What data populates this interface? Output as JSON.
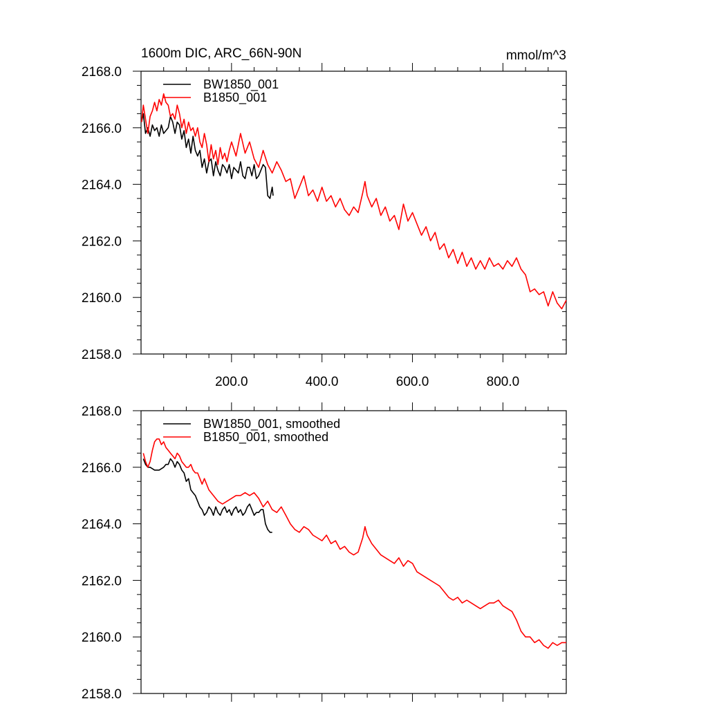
{
  "title_left": "1600m DIC, ARC_66N-90N",
  "title_right": "mmol/m^3",
  "colors": {
    "run_bw": "#000000",
    "run_b": "#ff0000"
  },
  "chart_data": [
    {
      "type": "line",
      "xlim": [
        0,
        940
      ],
      "ylim": [
        2158.0,
        2168.0
      ],
      "x_tick_labels": [
        "200.0",
        "400.0",
        "600.0",
        "800.0"
      ],
      "y_tick_labels": [
        "2158.0",
        "2160.0",
        "2162.0",
        "2164.0",
        "2166.0",
        "2168.0"
      ],
      "legend_position": "top-left",
      "series": [
        {
          "name": "BW1850_001",
          "color": "#000000",
          "x": [
            1,
            5,
            10,
            15,
            20,
            25,
            30,
            35,
            40,
            45,
            50,
            55,
            60,
            65,
            70,
            75,
            80,
            85,
            90,
            95,
            100,
            105,
            110,
            115,
            120,
            125,
            130,
            135,
            140,
            145,
            150,
            155,
            160,
            165,
            170,
            175,
            180,
            185,
            190,
            195,
            200,
            205,
            210,
            215,
            220,
            225,
            230,
            235,
            240,
            245,
            250,
            255,
            260,
            265,
            270,
            275,
            280,
            285,
            290,
            292
          ],
          "y": [
            2166.2,
            2166.5,
            2165.8,
            2166.0,
            2165.7,
            2166.1,
            2165.9,
            2166.0,
            2165.7,
            2166.1,
            2165.8,
            2165.9,
            2166.0,
            2166.4,
            2166.2,
            2165.8,
            2166.2,
            2166.1,
            2165.6,
            2165.9,
            2165.3,
            2165.6,
            2165.1,
            2165.7,
            2165.2,
            2165.0,
            2165.2,
            2164.6,
            2164.9,
            2164.4,
            2164.8,
            2164.9,
            2164.3,
            2164.8,
            2164.5,
            2164.3,
            2164.7,
            2164.6,
            2164.4,
            2164.7,
            2164.2,
            2164.6,
            2164.5,
            2164.4,
            2164.8,
            2164.3,
            2164.2,
            2164.6,
            2164.6,
            2164.3,
            2164.7,
            2164.2,
            2164.3,
            2164.5,
            2164.7,
            2164.6,
            2163.6,
            2163.5,
            2163.9,
            2163.6
          ]
        },
        {
          "name": "B1850_001",
          "color": "#ff0000",
          "x": [
            1,
            5,
            10,
            15,
            20,
            25,
            30,
            35,
            40,
            45,
            50,
            55,
            60,
            65,
            70,
            75,
            80,
            85,
            90,
            95,
            100,
            105,
            110,
            115,
            120,
            125,
            130,
            135,
            140,
            145,
            150,
            155,
            160,
            165,
            170,
            175,
            180,
            185,
            190,
            195,
            200,
            210,
            220,
            230,
            240,
            250,
            260,
            270,
            280,
            290,
            300,
            310,
            320,
            330,
            340,
            350,
            360,
            370,
            380,
            390,
            400,
            410,
            420,
            430,
            440,
            450,
            460,
            470,
            480,
            490,
            495,
            500,
            510,
            520,
            530,
            540,
            550,
            560,
            570,
            580,
            590,
            600,
            610,
            620,
            630,
            640,
            650,
            660,
            670,
            680,
            690,
            700,
            710,
            720,
            730,
            740,
            750,
            760,
            770,
            780,
            790,
            800,
            810,
            820,
            830,
            840,
            850,
            860,
            870,
            880,
            890,
            900,
            910,
            920,
            930,
            940
          ],
          "y": [
            2166.2,
            2166.8,
            2166.3,
            2165.8,
            2166.4,
            2166.6,
            2166.9,
            2166.6,
            2167.0,
            2166.8,
            2167.2,
            2166.9,
            2166.8,
            2166.4,
            2166.5,
            2166.3,
            2166.8,
            2166.5,
            2166.0,
            2166.3,
            2165.8,
            2166.2,
            2165.9,
            2166.0,
            2165.7,
            2166.0,
            2165.5,
            2165.3,
            2165.8,
            2165.4,
            2164.8,
            2165.4,
            2164.9,
            2165.2,
            2164.7,
            2165.3,
            2164.9,
            2165.1,
            2164.8,
            2165.2,
            2165.5,
            2165.0,
            2165.8,
            2165.1,
            2165.5,
            2164.9,
            2164.6,
            2165.2,
            2164.7,
            2164.4,
            2164.8,
            2164.5,
            2164.1,
            2164.2,
            2163.5,
            2163.9,
            2164.3,
            2163.6,
            2163.8,
            2163.4,
            2163.9,
            2163.4,
            2163.6,
            2163.2,
            2163.5,
            2163.1,
            2162.9,
            2163.2,
            2163.0,
            2163.7,
            2164.1,
            2163.6,
            2163.2,
            2163.5,
            2162.9,
            2163.2,
            2162.7,
            2162.9,
            2162.4,
            2163.3,
            2162.7,
            2163.0,
            2162.6,
            2162.2,
            2162.5,
            2162.0,
            2162.3,
            2161.7,
            2161.9,
            2161.4,
            2161.7,
            2161.2,
            2161.6,
            2161.1,
            2161.4,
            2161.0,
            2161.3,
            2161.0,
            2161.4,
            2161.1,
            2161.2,
            2161.0,
            2161.3,
            2161.1,
            2161.4,
            2161.0,
            2160.8,
            2160.2,
            2160.3,
            2160.1,
            2160.2,
            2159.7,
            2160.2,
            2159.8,
            2159.6,
            2159.9
          ]
        }
      ]
    },
    {
      "type": "line",
      "xlim": [
        0,
        940
      ],
      "ylim": [
        2158.0,
        2168.0
      ],
      "y_tick_labels": [
        "2158.0",
        "2160.0",
        "2162.0",
        "2164.0",
        "2166.0",
        "2168.0"
      ],
      "legend_position": "top-left",
      "series": [
        {
          "name": "BW1850_001, smoothed",
          "color": "#000000",
          "x": [
            5,
            10,
            15,
            20,
            30,
            40,
            50,
            55,
            60,
            65,
            70,
            75,
            80,
            85,
            90,
            95,
            100,
            105,
            110,
            115,
            120,
            125,
            130,
            135,
            140,
            145,
            150,
            155,
            160,
            165,
            170,
            175,
            180,
            185,
            190,
            195,
            200,
            205,
            210,
            215,
            220,
            225,
            230,
            235,
            240,
            245,
            250,
            255,
            260,
            265,
            270,
            275,
            280,
            285,
            290
          ],
          "y": [
            2166.3,
            2166.1,
            2166.0,
            2166.0,
            2165.9,
            2165.9,
            2166.0,
            2166.1,
            2166.1,
            2166.3,
            2166.2,
            2166.0,
            2166.2,
            2166.1,
            2165.9,
            2165.8,
            2165.5,
            2165.6,
            2165.2,
            2165.1,
            2165.0,
            2164.8,
            2164.6,
            2164.5,
            2164.3,
            2164.4,
            2164.6,
            2164.5,
            2164.3,
            2164.6,
            2164.4,
            2164.3,
            2164.5,
            2164.6,
            2164.4,
            2164.5,
            2164.3,
            2164.5,
            2164.6,
            2164.4,
            2164.5,
            2164.3,
            2164.4,
            2164.6,
            2164.7,
            2164.5,
            2164.3,
            2164.4,
            2164.4,
            2164.5,
            2164.5,
            2164.0,
            2163.8,
            2163.7,
            2163.7
          ]
        },
        {
          "name": "B1850_001, smoothed",
          "color": "#ff0000",
          "x": [
            5,
            10,
            15,
            20,
            25,
            30,
            35,
            40,
            45,
            50,
            55,
            60,
            65,
            70,
            75,
            80,
            85,
            90,
            95,
            100,
            105,
            110,
            115,
            120,
            125,
            130,
            135,
            140,
            150,
            160,
            170,
            180,
            190,
            200,
            210,
            220,
            230,
            240,
            250,
            260,
            270,
            280,
            290,
            300,
            310,
            320,
            330,
            340,
            350,
            360,
            370,
            380,
            390,
            400,
            410,
            420,
            430,
            440,
            450,
            460,
            470,
            480,
            490,
            495,
            500,
            510,
            520,
            530,
            540,
            550,
            560,
            570,
            580,
            590,
            600,
            610,
            620,
            630,
            640,
            650,
            660,
            670,
            680,
            690,
            700,
            710,
            720,
            730,
            740,
            750,
            760,
            770,
            780,
            790,
            800,
            810,
            820,
            830,
            840,
            850,
            860,
            870,
            880,
            890,
            900,
            910,
            920,
            930,
            940
          ],
          "y": [
            2166.5,
            2166.2,
            2166.0,
            2166.2,
            2166.6,
            2166.9,
            2167.0,
            2167.0,
            2166.8,
            2166.9,
            2166.7,
            2166.6,
            2166.5,
            2166.4,
            2166.3,
            2166.5,
            2166.4,
            2166.2,
            2166.1,
            2166.0,
            2166.0,
            2166.1,
            2165.9,
            2165.8,
            2165.8,
            2165.6,
            2165.4,
            2165.6,
            2165.2,
            2165.0,
            2164.8,
            2164.7,
            2164.8,
            2164.9,
            2165.0,
            2165.0,
            2165.1,
            2165.0,
            2165.1,
            2164.9,
            2164.6,
            2164.8,
            2164.5,
            2164.4,
            2164.6,
            2164.3,
            2164.0,
            2163.8,
            2163.7,
            2163.9,
            2163.8,
            2163.6,
            2163.5,
            2163.4,
            2163.6,
            2163.3,
            2163.4,
            2163.1,
            2163.2,
            2163.0,
            2162.9,
            2163.0,
            2163.5,
            2163.9,
            2163.6,
            2163.3,
            2163.1,
            2162.9,
            2162.8,
            2162.7,
            2162.6,
            2162.8,
            2162.5,
            2162.7,
            2162.6,
            2162.3,
            2162.2,
            2162.1,
            2162.0,
            2161.9,
            2161.8,
            2161.6,
            2161.4,
            2161.3,
            2161.4,
            2161.2,
            2161.3,
            2161.2,
            2161.1,
            2161.0,
            2161.1,
            2161.2,
            2161.2,
            2161.3,
            2161.1,
            2161.0,
            2160.9,
            2160.6,
            2160.2,
            2160.0,
            2160.0,
            2159.8,
            2159.9,
            2159.7,
            2159.6,
            2159.8,
            2159.7,
            2159.8,
            2159.8
          ]
        }
      ]
    }
  ]
}
